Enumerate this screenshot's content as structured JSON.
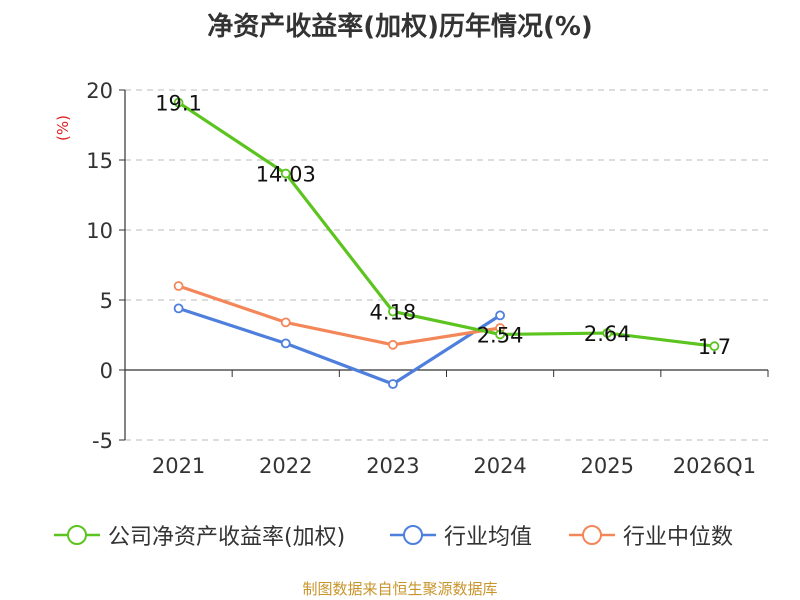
{
  "title": "净资产收益率(加权)历年情况(%)",
  "source": "制图数据来自恒生聚源数据库",
  "chart_data": {
    "type": "line",
    "title": "净资产收益率(加权)历年情况(%)",
    "ylabel": "(%)",
    "ylim": [
      -5,
      20
    ],
    "yticks": [
      -5,
      0,
      5,
      10,
      15,
      20
    ],
    "grid": true,
    "legend_position": "bottom",
    "categories": [
      "2021",
      "2022",
      "2023",
      "2024",
      "2025",
      "2026Q1"
    ],
    "series": [
      {
        "name": "公司净资产收益率(加权)",
        "color": "#5cc41f",
        "values": [
          19.1,
          14.03,
          4.18,
          2.54,
          2.64,
          1.7
        ],
        "labels": [
          "19.1",
          "14.03",
          "4.18",
          "2.54",
          "2.64",
          "1.7"
        ]
      },
      {
        "name": "行业均值",
        "color": "#4f7fdd",
        "values": [
          4.4,
          1.9,
          -1.0,
          3.9,
          null,
          null
        ]
      },
      {
        "name": "行业中位数",
        "color": "#f4875a",
        "values": [
          6.0,
          3.4,
          1.8,
          3.0,
          null,
          null
        ]
      }
    ]
  }
}
